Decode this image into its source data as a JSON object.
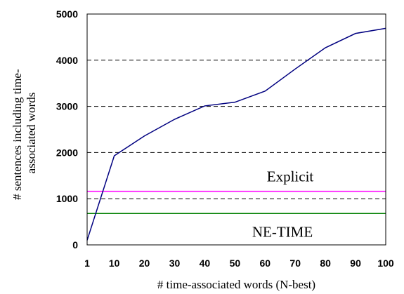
{
  "chart_data": {
    "type": "line",
    "title": "",
    "xlabel": "# time-associated words (N-best)",
    "ylabel_lines": [
      "# sentences including time-",
      "associated words"
    ],
    "x_ticks": [
      1,
      10,
      20,
      30,
      40,
      50,
      60,
      70,
      80,
      90,
      100
    ],
    "y_ticks": [
      0,
      1000,
      2000,
      3000,
      4000,
      5000
    ],
    "xlim": [
      1,
      100
    ],
    "ylim": [
      0,
      5000
    ],
    "grid": "horizontal-dashed",
    "series": [
      {
        "x": [
          1,
          10,
          20,
          30,
          40,
          50,
          60,
          70,
          80,
          90,
          100
        ],
        "y": [
          100,
          1930,
          2360,
          2720,
          3010,
          3090,
          3330,
          3810,
          4270,
          4580,
          4690
        ],
        "color": "#000080"
      }
    ],
    "reference_lines": [
      {
        "label": "Explicit",
        "y": 1160,
        "color": "#ff00ff"
      },
      {
        "label": "NE-TIME",
        "y": 680,
        "color": "#008000"
      }
    ]
  }
}
